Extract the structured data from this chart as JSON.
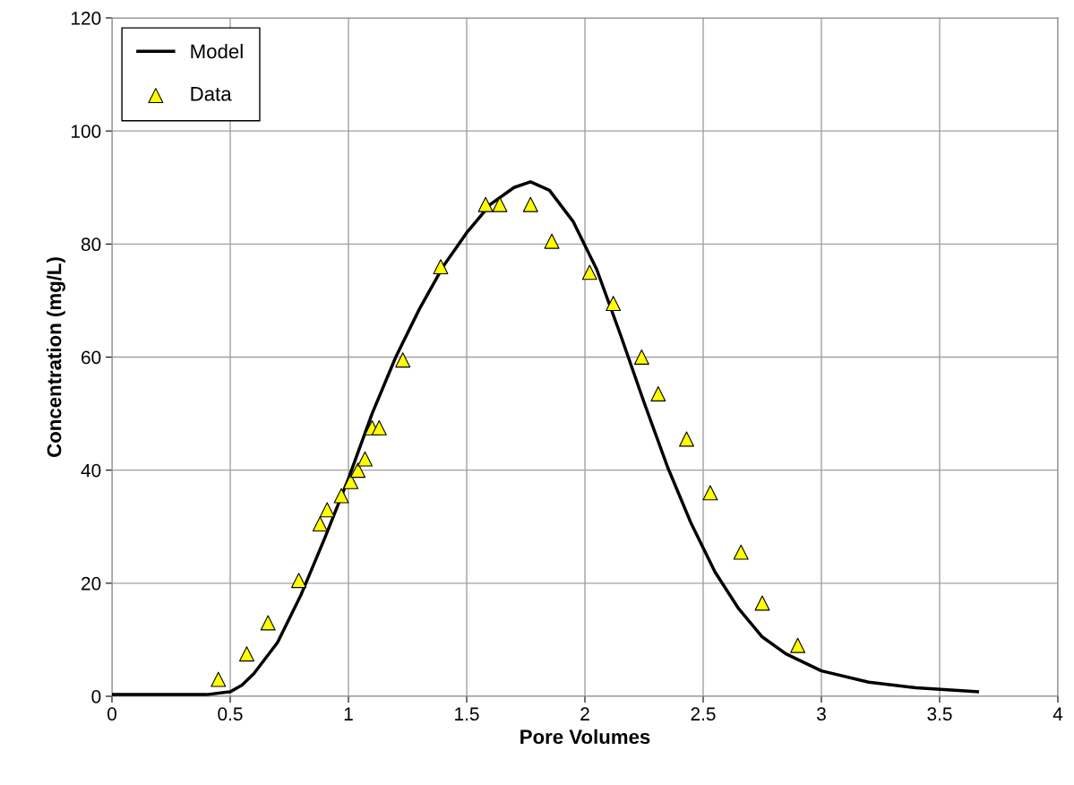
{
  "chart_data": {
    "type": "line",
    "xlabel": "Pore Volumes",
    "ylabel": "Concentration (mg/L)",
    "xlim": [
      0,
      4
    ],
    "xticks": [
      0,
      0.5,
      1,
      1.5,
      2,
      2.5,
      3,
      3.5,
      4
    ],
    "ylim": [
      0,
      120
    ],
    "yticks": [
      0,
      20,
      40,
      60,
      80,
      100,
      120
    ],
    "grid": true,
    "legend": "top left",
    "series": [
      {
        "name": "Model",
        "color": "#000000",
        "marker": "none",
        "line_style": "solid",
        "x": [
          0,
          0.4,
          0.5,
          0.55,
          0.6,
          0.7,
          0.8,
          0.9,
          1.0,
          1.1,
          1.2,
          1.3,
          1.4,
          1.5,
          1.6,
          1.7,
          1.77,
          1.85,
          1.95,
          2.05,
          2.15,
          2.25,
          2.35,
          2.45,
          2.55,
          2.65,
          2.75,
          2.85,
          3.0,
          3.2,
          3.4,
          3.66
        ],
        "values": [
          0.3,
          0.3,
          0.8,
          2,
          4,
          9.5,
          18,
          28,
          38.5,
          50,
          60,
          68.5,
          76,
          82,
          87,
          90,
          91,
          89.5,
          84,
          75.5,
          64,
          52,
          40.5,
          30.5,
          22,
          15.5,
          10.5,
          7.5,
          4.5,
          2.5,
          1.5,
          0.8
        ]
      },
      {
        "name": "Data",
        "type": "scatter",
        "color": "#ffff00",
        "marker": "triangle",
        "x": [
          0.45,
          0.57,
          0.66,
          0.79,
          0.88,
          0.91,
          0.97,
          1.01,
          1.04,
          1.07,
          1.1,
          1.13,
          1.23,
          1.39,
          1.58,
          1.64,
          1.77,
          1.86,
          2.02,
          2.12,
          2.24,
          2.31,
          2.43,
          2.53,
          2.66,
          2.75,
          2.9
        ],
        "values": [
          3,
          7.5,
          13,
          20.5,
          30.5,
          33,
          35.5,
          38,
          40,
          42,
          47.5,
          47.5,
          59.5,
          76,
          87,
          87,
          87,
          80.5,
          75,
          69.5,
          60,
          53.5,
          45.5,
          36,
          25.5,
          16.5,
          9
        ]
      }
    ]
  }
}
